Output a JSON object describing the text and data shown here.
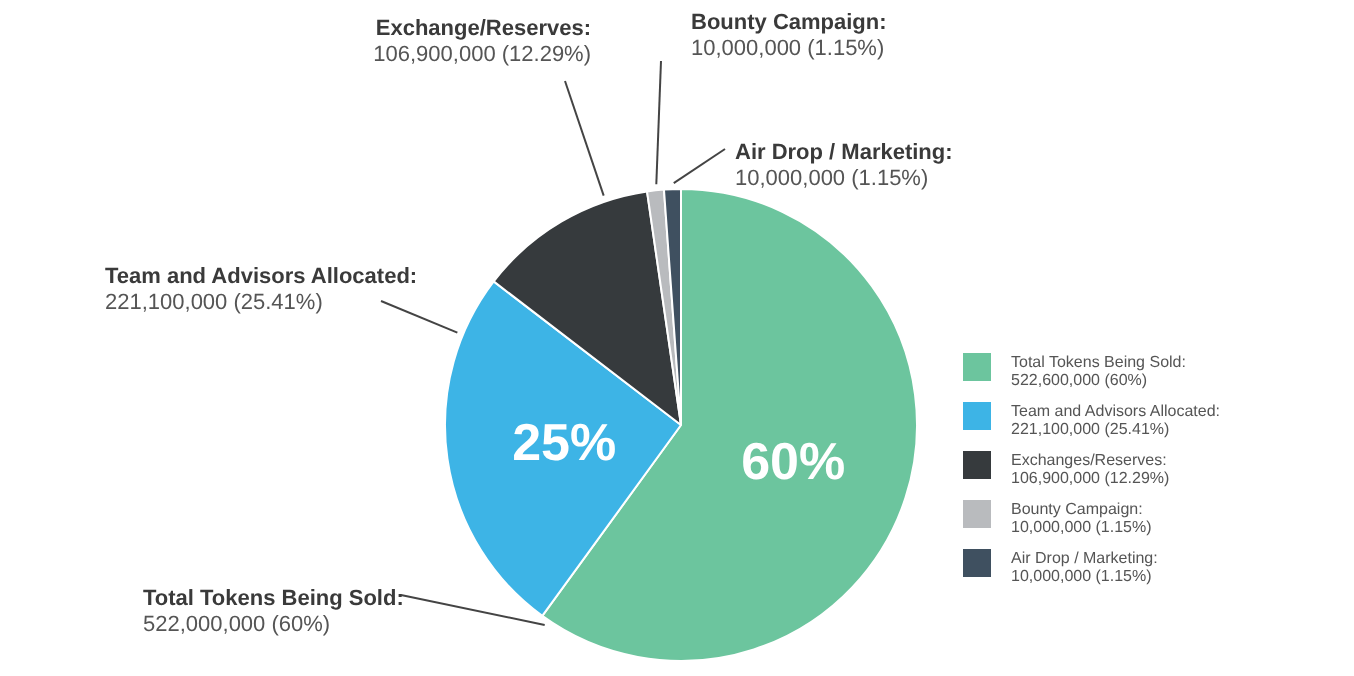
{
  "chart_data": {
    "type": "pie",
    "categories": [
      "Total Tokens Being Sold:\n522,600,000 (60%)",
      "Team and Advisors Allocated:\n221,100,000 (25.41%)",
      "Exchanges/Reserves:\n106,900,000 (12.29%)",
      "Bounty Campaign:\n10,000,000 (1.15%)",
      "Air Drop / Marketing:\n10,000,000 (1.15%)"
    ],
    "values": [
      60,
      25.41,
      12.29,
      1.15,
      1.15
    ],
    "colors": [
      "#6cc59e",
      "#3db4e6",
      "#363a3d",
      "#b9bbbe",
      "#3f5060"
    ],
    "value_labels": [
      "60%",
      "25%",
      null,
      null,
      null
    ],
    "annotations": [
      "Total Tokens Being Sold:\n522,000,000 (60%)",
      "Team and Advisors Allocated:\n221,100,000 (25.41%)",
      "Exchange/Reserves:\n106,900,000 (12.29%)",
      "Bounty Campaign:\n10,000,000 (1.15%)",
      "Air Drop / Marketing:\n10,000,000 (1.15%)"
    ],
    "legend": "right"
  }
}
